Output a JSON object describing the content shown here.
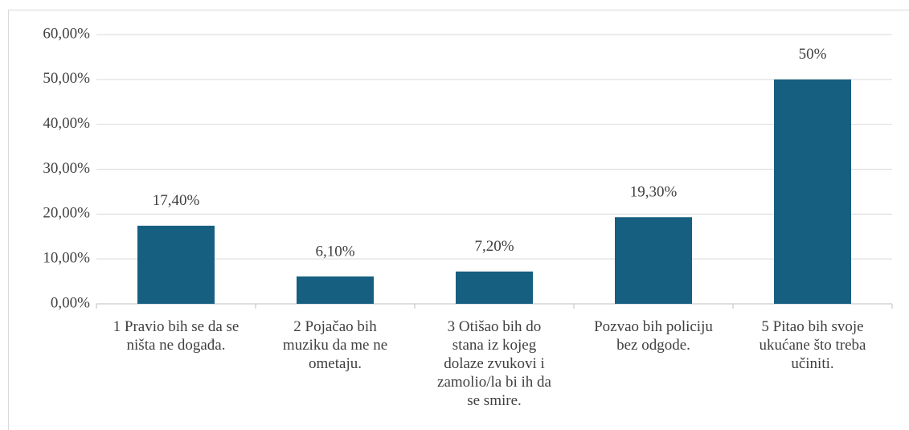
{
  "chart_data": {
    "type": "bar",
    "categories": [
      [
        "1 Pravio bih se da se",
        "ništa ne događa."
      ],
      [
        "2 Pojačao bih",
        "muziku da me ne",
        "ometaju."
      ],
      [
        "3 Otišao bih do",
        "stana iz kojeg",
        "dolaze zvukovi i",
        "zamolio/la bi ih da",
        "se smire."
      ],
      [
        "Pozvao bih policiju",
        "bez odgode."
      ],
      [
        "5 Pitao bih svoje",
        "ukućane što treba",
        "učiniti."
      ]
    ],
    "values": [
      17.4,
      6.1,
      7.2,
      19.3,
      50
    ],
    "value_labels": [
      "17,40%",
      "6,10%",
      "7,20%",
      "19,30%",
      "50%"
    ],
    "color": "#175f80",
    "ylim": [
      0,
      60
    ],
    "yticks": [
      {
        "value": 0,
        "label": "0,00%"
      },
      {
        "value": 10,
        "label": "10,00%"
      },
      {
        "value": 20,
        "label": "20,00%"
      },
      {
        "value": 30,
        "label": "30,00%"
      },
      {
        "value": 40,
        "label": "40,00%"
      },
      {
        "value": 50,
        "label": "50,00%"
      },
      {
        "value": 60,
        "label": "60,00%"
      }
    ],
    "grid": true
  }
}
